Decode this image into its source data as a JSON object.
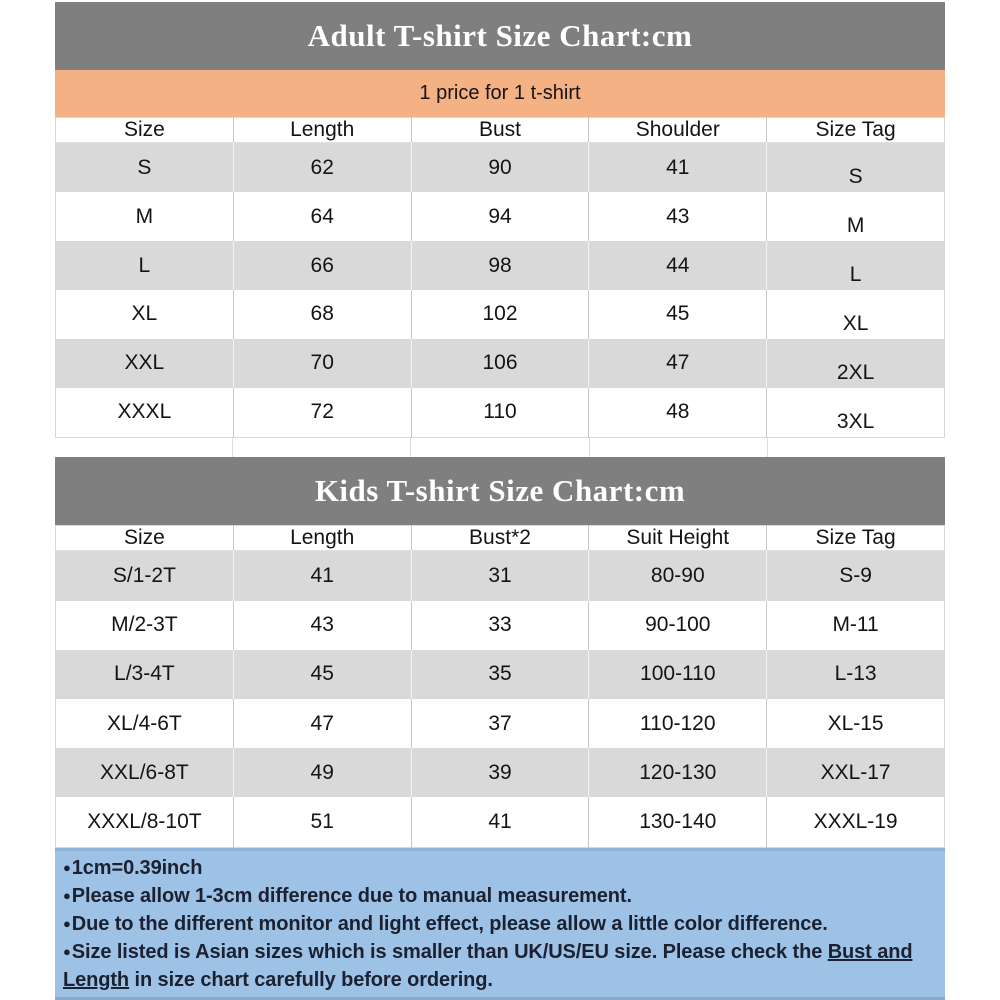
{
  "colors": {
    "title_bar_bg": "#7f7f7f",
    "title_text": "#ffffff",
    "price_bar_bg": "#f4b183",
    "row_alt_bg": "#d9d9d9",
    "notes_bg": "#9ec2e6",
    "notes_text": "#1b2130",
    "table_text": "#141414"
  },
  "adult_chart": {
    "title": "Adult T-shirt Size Chart:cm",
    "price_note": "1 price for 1 t-shirt",
    "columns": [
      "Size",
      "Length",
      "Bust",
      "Shoulder",
      "Size Tag"
    ],
    "rows": [
      [
        "S",
        "62",
        "90",
        "41",
        "S"
      ],
      [
        "M",
        "64",
        "94",
        "43",
        "M"
      ],
      [
        "L",
        "66",
        "98",
        "44",
        "L"
      ],
      [
        "XL",
        "68",
        "102",
        "45",
        "XL"
      ],
      [
        "XXL",
        "70",
        "106",
        "47",
        "2XL"
      ],
      [
        "XXXL",
        "72",
        "110",
        "48",
        "3XL"
      ]
    ]
  },
  "kids_chart": {
    "title": "Kids T-shirt Size Chart:cm",
    "columns": [
      "Size",
      "Length",
      "Bust*2",
      "Suit Height",
      "Size Tag"
    ],
    "rows": [
      [
        "S/1-2T",
        "41",
        "31",
        "80-90",
        "S-9"
      ],
      [
        "M/2-3T",
        "43",
        "33",
        "90-100",
        "M-11"
      ],
      [
        "L/3-4T",
        "45",
        "35",
        "100-110",
        "L-13"
      ],
      [
        "XL/4-6T",
        "47",
        "37",
        "110-120",
        "XL-15"
      ],
      [
        "XXL/6-8T",
        "49",
        "39",
        "120-130",
        "XXL-17"
      ],
      [
        "XXXL/8-10T",
        "51",
        "41",
        "130-140",
        "XXXL-19"
      ]
    ]
  },
  "notes": {
    "bullet": "●",
    "items": [
      {
        "pre": "1cm=0.39inch"
      },
      {
        "pre": "Please allow 1-3cm difference due to manual measurement."
      },
      {
        "pre": "Due to the different monitor and light effect, please allow a little color difference."
      },
      {
        "pre": "Size listed is Asian sizes which is smaller than UK/US/EU size. Please check the ",
        "underline": "Bust and Length",
        "post": " in size chart carefully before ordering."
      }
    ]
  }
}
